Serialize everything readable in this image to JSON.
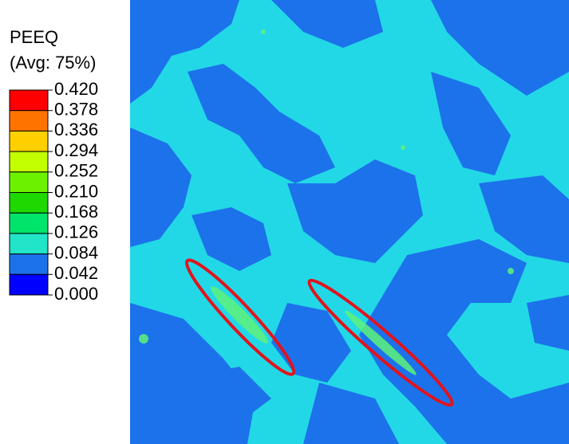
{
  "legend": {
    "title": "PEEQ",
    "subtitle": "(Avg: 75%)",
    "labels": [
      "0.420",
      "0.378",
      "0.336",
      "0.294",
      "0.252",
      "0.210",
      "0.168",
      "0.126",
      "0.084",
      "0.042",
      "0.000"
    ]
  }
}
